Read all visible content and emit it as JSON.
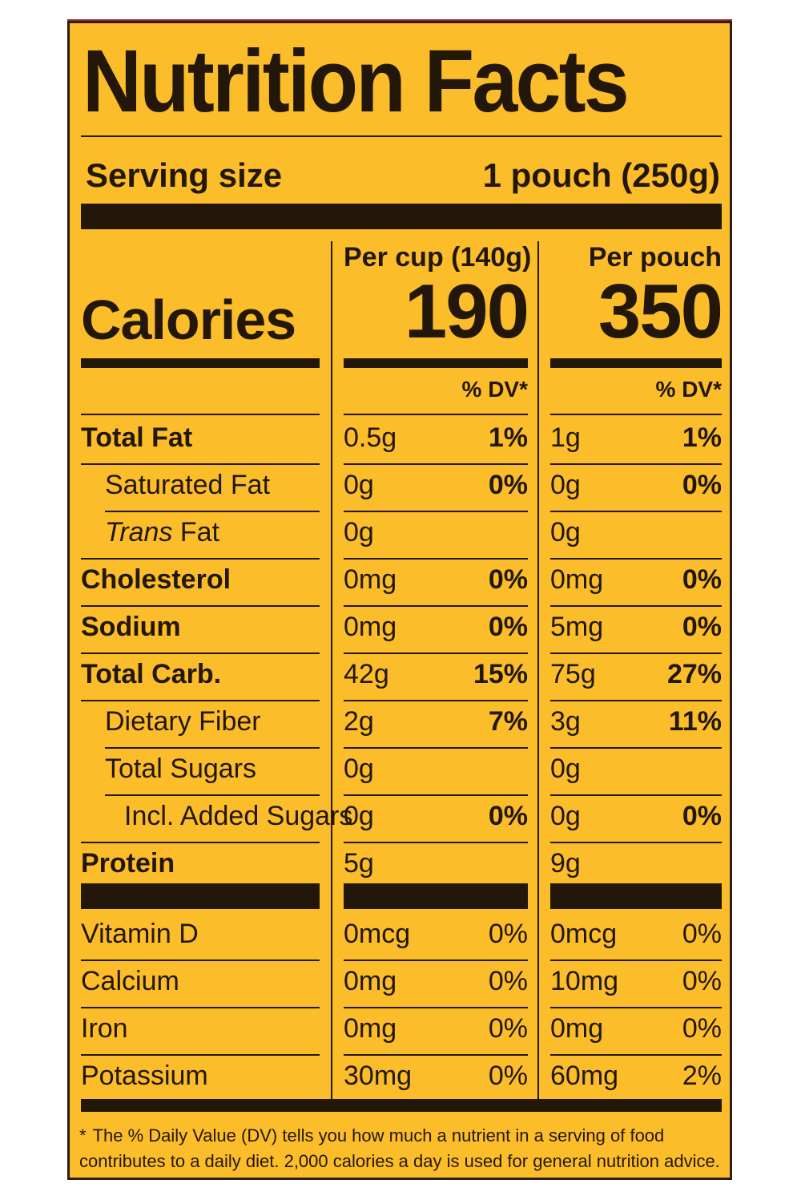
{
  "title": "Nutrition Facts",
  "serving": {
    "label": "Serving size",
    "value": "1 pouch (250g)"
  },
  "calories_label": "Calories",
  "columns": [
    {
      "header": "Per cup (140g)",
      "calories": "190",
      "dv_header": "% DV*"
    },
    {
      "header": "Per pouch",
      "calories": "350",
      "dv_header": "% DV*"
    }
  ],
  "nutrients": [
    {
      "name": "Total Fat",
      "bold": true,
      "indent": 0,
      "cup_amount": "0.5g",
      "cup_dv": "1%",
      "pouch_amount": "1g",
      "pouch_dv": "1%"
    },
    {
      "name": "Saturated Fat",
      "bold": false,
      "indent": 1,
      "cup_amount": "0g",
      "cup_dv": "0%",
      "pouch_amount": "0g",
      "pouch_dv": "0%"
    },
    {
      "name_italic": "Trans",
      "name": " Fat",
      "bold": false,
      "indent": 1,
      "cup_amount": "0g",
      "cup_dv": "",
      "pouch_amount": "0g",
      "pouch_dv": ""
    },
    {
      "name": "Cholesterol",
      "bold": true,
      "indent": 0,
      "cup_amount": "0mg",
      "cup_dv": "0%",
      "pouch_amount": "0mg",
      "pouch_dv": "0%"
    },
    {
      "name": "Sodium",
      "bold": true,
      "indent": 0,
      "cup_amount": "0mg",
      "cup_dv": "0%",
      "pouch_amount": "5mg",
      "pouch_dv": "0%"
    },
    {
      "name": "Total Carb.",
      "bold": true,
      "indent": 0,
      "cup_amount": "42g",
      "cup_dv": "15%",
      "pouch_amount": "75g",
      "pouch_dv": "27%"
    },
    {
      "name": "Dietary Fiber",
      "bold": false,
      "indent": 1,
      "cup_amount": "2g",
      "cup_dv": "7%",
      "pouch_amount": "3g",
      "pouch_dv": "11%"
    },
    {
      "name": "Total Sugars",
      "bold": false,
      "indent": 1,
      "cup_amount": "0g",
      "cup_dv": "",
      "pouch_amount": "0g",
      "pouch_dv": ""
    },
    {
      "name": "Incl. Added Sugars",
      "bold": false,
      "indent": 2,
      "cup_amount": "0g",
      "cup_dv": "0%",
      "pouch_amount": "0g",
      "pouch_dv": "0%"
    },
    {
      "name": "Protein",
      "bold": true,
      "indent": 0,
      "cup_amount": "5g",
      "cup_dv": "",
      "pouch_amount": "9g",
      "pouch_dv": ""
    }
  ],
  "vitamins": [
    {
      "name": "Vitamin D",
      "cup_amount": "0mcg",
      "cup_dv": "0%",
      "pouch_amount": "0mcg",
      "pouch_dv": "0%"
    },
    {
      "name": "Calcium",
      "cup_amount": "0mg",
      "cup_dv": "0%",
      "pouch_amount": "10mg",
      "pouch_dv": "0%"
    },
    {
      "name": "Iron",
      "cup_amount": "0mg",
      "cup_dv": "0%",
      "pouch_amount": "0mg",
      "pouch_dv": "0%"
    },
    {
      "name": "Potassium",
      "cup_amount": "30mg",
      "cup_dv": "0%",
      "pouch_amount": "60mg",
      "pouch_dv": "2%"
    }
  ],
  "footnote": {
    "star": "*",
    "text": "The % Daily Value (DV) tells you how much a nutrient in a serving of food contributes to a daily diet. 2,000 calories a day is used for general nutrition advice."
  },
  "colors": {
    "background": "#fbbd2a",
    "ink": "#231709"
  }
}
